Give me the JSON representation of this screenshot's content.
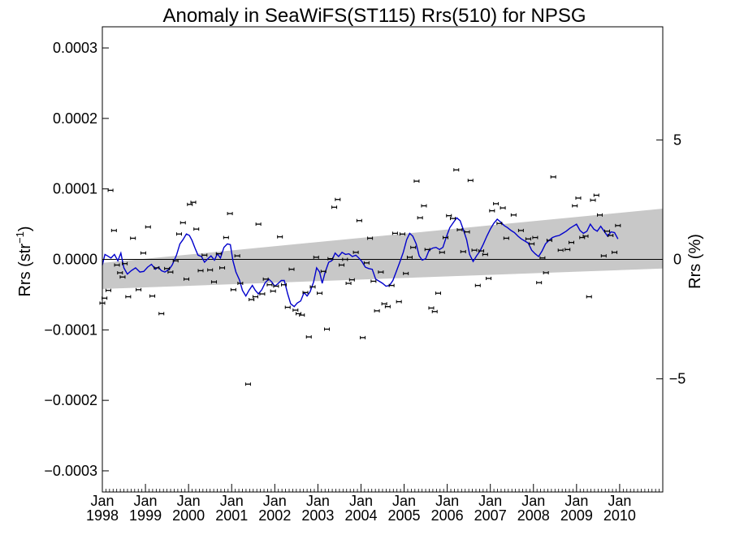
{
  "chart_data": {
    "type": "scatter",
    "title": "Anomaly in SeaWiFS(ST115) Rrs(510) for NPSG",
    "ylabel": "Rrs (str",
    "ylabel_superscript": "−1",
    "ylabel_close": ")",
    "y2label": "Rrs (%)",
    "ylim": [
      -0.00033,
      0.00033
    ],
    "xlim": [
      1998.0,
      2011.0
    ],
    "y_ticks": [
      {
        "value": 0.0003,
        "label": "0.0003"
      },
      {
        "value": 0.0002,
        "label": "0.0002"
      },
      {
        "value": 0.0001,
        "label": "0.0001"
      },
      {
        "value": 0.0,
        "label": "0.0000"
      },
      {
        "value": -0.0001,
        "label": "−0.0001"
      },
      {
        "value": -0.0002,
        "label": "−0.0002"
      },
      {
        "value": -0.0003,
        "label": "−0.0003"
      }
    ],
    "y2_ticks": [
      {
        "value": 5,
        "label": "5"
      },
      {
        "value": 0,
        "label": "0"
      },
      {
        "value": -5,
        "label": "−5"
      }
    ],
    "y2_per_percent": 3.39e-05,
    "x_ticks": [
      {
        "year": 1998,
        "month": "Jan",
        "label": "1998"
      },
      {
        "year": 1999,
        "month": "Jan",
        "label": "1999"
      },
      {
        "year": 2000,
        "month": "Jan",
        "label": "2000"
      },
      {
        "year": 2001,
        "month": "Jan",
        "label": "2001"
      },
      {
        "year": 2002,
        "month": "Jan",
        "label": "2002"
      },
      {
        "year": 2003,
        "month": "Jan",
        "label": "2003"
      },
      {
        "year": 2004,
        "month": "Jan",
        "label": "2004"
      },
      {
        "year": 2005,
        "month": "Jan",
        "label": "2005"
      },
      {
        "year": 2006,
        "month": "Jan",
        "label": "2006"
      },
      {
        "year": 2007,
        "month": "Jan",
        "label": "2007"
      },
      {
        "year": 2008,
        "month": "Jan",
        "label": "2008"
      },
      {
        "year": 2009,
        "month": "Jan",
        "label": "2009"
      },
      {
        "year": 2010,
        "month": "Jan",
        "label": "2010"
      }
    ],
    "trend_band": {
      "upper": [
        [
          1998.0,
          -5e-06
        ],
        [
          2011.0,
          7.2e-05
        ]
      ],
      "lower": [
        [
          1998.0,
          -4.2e-05
        ],
        [
          2011.0,
          -1.3e-05
        ]
      ]
    },
    "zero_line": 0.0,
    "points": [
      [
        1998.0,
        -6.2e-05
      ],
      [
        1998.05,
        -5.5e-05
      ],
      [
        1998.14,
        -4.4e-05
      ],
      [
        1998.19,
        9.8e-05
      ],
      [
        1998.27,
        4.1e-05
      ],
      [
        1998.34,
        -8e-06
      ],
      [
        1998.41,
        -1.9e-05
      ],
      [
        1998.47,
        -2.5e-05
      ],
      [
        1998.52,
        -6e-06
      ],
      [
        1998.6,
        -5.3e-05
      ],
      [
        1998.71,
        3e-05
      ],
      [
        1998.84,
        -4.3e-05
      ],
      [
        1998.95,
        9e-06
      ],
      [
        1999.06,
        4.6e-05
      ],
      [
        1999.16,
        -5.2e-05
      ],
      [
        1999.26,
        -1.2e-05
      ],
      [
        1999.37,
        -7.7e-05
      ],
      [
        1999.5,
        -1.3e-05
      ],
      [
        1999.58,
        -1.8e-05
      ],
      [
        1999.7,
        -2e-06
      ],
      [
        1999.78,
        3.6e-05
      ],
      [
        1999.87,
        5.2e-05
      ],
      [
        1999.95,
        -2.8e-05
      ],
      [
        2000.03,
        7.8e-05
      ],
      [
        2000.11,
        8.1e-05
      ],
      [
        2000.18,
        4.3e-05
      ],
      [
        2000.28,
        -1.6e-05
      ],
      [
        2000.37,
        6e-06
      ],
      [
        2000.5,
        -1.5e-05
      ],
      [
        2000.59,
        -3.2e-05
      ],
      [
        2000.7,
        8e-06
      ],
      [
        2000.78,
        -1.2e-05
      ],
      [
        2000.87,
        3.1e-05
      ],
      [
        2000.96,
        6.5e-05
      ],
      [
        2001.04,
        -4.3e-05
      ],
      [
        2001.13,
        5e-06
      ],
      [
        2001.2,
        -3.4e-05
      ],
      [
        2001.38,
        -0.000177
      ],
      [
        2001.46,
        -5.7e-05
      ],
      [
        2001.55,
        -5.3e-05
      ],
      [
        2001.62,
        5e-05
      ],
      [
        2001.71,
        -4.9e-05
      ],
      [
        2001.79,
        -2.8e-05
      ],
      [
        2001.88,
        -3.6e-05
      ],
      [
        2001.96,
        -4.5e-05
      ],
      [
        2002.03,
        -3.8e-05
      ],
      [
        2002.12,
        3.2e-05
      ],
      [
        2002.21,
        -3.6e-05
      ],
      [
        2002.3,
        -6.8e-05
      ],
      [
        2002.39,
        -1.4e-05
      ],
      [
        2002.48,
        -7.2e-05
      ],
      [
        2002.55,
        -7.7e-05
      ],
      [
        2002.63,
        -7.9e-05
      ],
      [
        2002.71,
        -4.7e-05
      ],
      [
        2002.79,
        -0.00011
      ],
      [
        2002.88,
        -3.9e-05
      ],
      [
        2002.96,
        3e-06
      ],
      [
        2003.04,
        -4.8e-05
      ],
      [
        2003.13,
        -1.7e-05
      ],
      [
        2003.21,
        -9.9e-05
      ],
      [
        2003.29,
        1e-06
      ],
      [
        2003.38,
        7.4e-05
      ],
      [
        2003.46,
        8.5e-05
      ],
      [
        2003.55,
        -8e-06
      ],
      [
        2003.63,
        0.0
      ],
      [
        2003.71,
        -3.4e-05
      ],
      [
        2003.79,
        -2.9e-05
      ],
      [
        2003.88,
        1e-05
      ],
      [
        2003.96,
        5.5e-05
      ],
      [
        2004.04,
        -0.000111
      ],
      [
        2004.13,
        -5e-06
      ],
      [
        2004.21,
        3e-05
      ],
      [
        2004.29,
        -3.1e-05
      ],
      [
        2004.37,
        -7.3e-05
      ],
      [
        2004.46,
        -1.8e-05
      ],
      [
        2004.54,
        -6.3e-05
      ],
      [
        2004.62,
        -6.7e-05
      ],
      [
        2004.71,
        -3.7e-05
      ],
      [
        2004.79,
        3.7e-05
      ],
      [
        2004.88,
        -6e-05
      ],
      [
        2004.96,
        3.6e-05
      ],
      [
        2005.04,
        -2e-05
      ],
      [
        2005.13,
        3e-06
      ],
      [
        2005.21,
        1.7e-05
      ],
      [
        2005.29,
        0.000111
      ],
      [
        2005.37,
        5.9e-05
      ],
      [
        2005.46,
        7.6e-05
      ],
      [
        2005.54,
        1.4e-05
      ],
      [
        2005.63,
        -6.9e-05
      ],
      [
        2005.71,
        -7.4e-05
      ],
      [
        2005.79,
        -4.8e-05
      ],
      [
        2005.88,
        1e-05
      ],
      [
        2005.96,
        3.1e-05
      ],
      [
        2006.04,
        6.2e-05
      ],
      [
        2006.13,
        5.8e-05
      ],
      [
        2006.21,
        0.000127
      ],
      [
        2006.29,
        4.2e-05
      ],
      [
        2006.37,
        1.1e-05
      ],
      [
        2006.46,
        3.9e-05
      ],
      [
        2006.54,
        0.000112
      ],
      [
        2006.63,
        1.3e-05
      ],
      [
        2006.71,
        -3.7e-05
      ],
      [
        2006.79,
        1.2e-05
      ],
      [
        2006.88,
        7e-06
      ],
      [
        2006.96,
        -2.7e-05
      ],
      [
        2007.04,
        6.9e-05
      ],
      [
        2007.13,
        7.9e-05
      ],
      [
        2007.21,
        5.1e-05
      ],
      [
        2007.29,
        7.3e-05
      ],
      [
        2007.37,
        3e-05
      ],
      [
        2007.54,
        6.3e-05
      ],
      [
        2007.71,
        4.1e-05
      ],
      [
        2007.88,
        2.9e-05
      ],
      [
        2007.96,
        2.2e-05
      ],
      [
        2008.04,
        3.1e-05
      ],
      [
        2008.13,
        -3.3e-05
      ],
      [
        2008.21,
        2e-06
      ],
      [
        2008.29,
        -1.9e-05
      ],
      [
        2008.37,
        2.7e-05
      ],
      [
        2008.46,
        0.000117
      ],
      [
        2008.63,
        1.3e-05
      ],
      [
        2008.79,
        1.4e-05
      ],
      [
        2008.88,
        2.4e-05
      ],
      [
        2008.96,
        7.6e-05
      ],
      [
        2009.04,
        8.7e-05
      ],
      [
        2009.13,
        3.1e-05
      ],
      [
        2009.21,
        3.3e-05
      ],
      [
        2009.29,
        -5.3e-05
      ],
      [
        2009.38,
        8.4e-05
      ],
      [
        2009.46,
        9.1e-05
      ],
      [
        2009.54,
        6.3e-05
      ],
      [
        2009.63,
        5e-06
      ],
      [
        2009.71,
        4e-05
      ],
      [
        2009.79,
        3.4e-05
      ],
      [
        2009.88,
        1e-05
      ],
      [
        2009.96,
        4.8e-05
      ]
    ],
    "running_mean": [
      [
        1998.0,
        -8e-06
      ],
      [
        1998.06,
        7e-06
      ],
      [
        1998.12,
        5e-06
      ],
      [
        1998.2,
        2e-06
      ],
      [
        1998.28,
        7e-06
      ],
      [
        1998.36,
        -2e-06
      ],
      [
        1998.43,
        9e-06
      ],
      [
        1998.5,
        -1.2e-05
      ],
      [
        1998.58,
        -2.1e-05
      ],
      [
        1998.67,
        -1.6e-05
      ],
      [
        1998.77,
        -1.2e-05
      ],
      [
        1998.87,
        -1.8e-05
      ],
      [
        1998.96,
        -1.7e-05
      ],
      [
        1999.05,
        -1.1e-05
      ],
      [
        1999.14,
        -7e-06
      ],
      [
        1999.23,
        -1.4e-05
      ],
      [
        1999.3,
        -1.1e-05
      ],
      [
        1999.37,
        -1.6e-05
      ],
      [
        1999.45,
        -1.8e-05
      ],
      [
        1999.55,
        -1.4e-05
      ],
      [
        1999.62,
        -8e-06
      ],
      [
        1999.72,
        6e-06
      ],
      [
        1999.8,
        2.2e-05
      ],
      [
        1999.87,
        2.8e-05
      ],
      [
        1999.95,
        3.6e-05
      ],
      [
        2000.02,
        3.4e-05
      ],
      [
        2000.08,
        2.7e-05
      ],
      [
        2000.15,
        1.6e-05
      ],
      [
        2000.22,
        6e-06
      ],
      [
        2000.3,
        4e-06
      ],
      [
        2000.37,
        -4e-06
      ],
      [
        2000.45,
        1e-06
      ],
      [
        2000.52,
        5e-06
      ],
      [
        2000.6,
        -1e-06
      ],
      [
        2000.67,
        8e-06
      ],
      [
        2000.74,
        2e-06
      ],
      [
        2000.82,
        1.7e-05
      ],
      [
        2000.9,
        2.2e-05
      ],
      [
        2000.97,
        2.1e-05
      ],
      [
        2001.03,
        -2e-06
      ],
      [
        2001.1,
        -1.8e-05
      ],
      [
        2001.18,
        -2.9e-05
      ],
      [
        2001.25,
        -4.4e-05
      ],
      [
        2001.33,
        -5.2e-05
      ],
      [
        2001.4,
        -4.4e-05
      ],
      [
        2001.48,
        -3.7e-05
      ],
      [
        2001.55,
        -4.4e-05
      ],
      [
        2001.62,
        -4.9e-05
      ],
      [
        2001.7,
        -4.3e-05
      ],
      [
        2001.78,
        -3.3e-05
      ],
      [
        2001.86,
        -2.8e-05
      ],
      [
        2001.93,
        -3.2e-05
      ],
      [
        2002.0,
        -3.8e-05
      ],
      [
        2002.08,
        -3.4e-05
      ],
      [
        2002.15,
        -3e-05
      ],
      [
        2002.22,
        -3e-05
      ],
      [
        2002.3,
        -4.9e-05
      ],
      [
        2002.37,
        -6.3e-05
      ],
      [
        2002.45,
        -6.7e-05
      ],
      [
        2002.52,
        -6.2e-05
      ],
      [
        2002.6,
        -5.9e-05
      ],
      [
        2002.68,
        -4.7e-05
      ],
      [
        2002.75,
        -5.2e-05
      ],
      [
        2002.82,
        -4.6e-05
      ],
      [
        2002.9,
        -3.2e-05
      ],
      [
        2002.97,
        -1.2e-05
      ],
      [
        2003.04,
        -1.8e-05
      ],
      [
        2003.1,
        -3.4e-05
      ],
      [
        2003.17,
        -1.8e-05
      ],
      [
        2003.25,
        -4e-06
      ],
      [
        2003.32,
        -2e-06
      ],
      [
        2003.4,
        9e-06
      ],
      [
        2003.48,
        4e-06
      ],
      [
        2003.56,
        1e-05
      ],
      [
        2003.64,
        7e-06
      ],
      [
        2003.72,
        8e-06
      ],
      [
        2003.8,
        4e-06
      ],
      [
        2003.88,
        6e-06
      ],
      [
        2003.95,
        2e-06
      ],
      [
        2004.02,
        -3e-06
      ],
      [
        2004.1,
        -1.1e-05
      ],
      [
        2004.18,
        -1.3e-05
      ],
      [
        2004.26,
        -1.4e-05
      ],
      [
        2004.34,
        -2.8e-05
      ],
      [
        2004.42,
        -3.1e-05
      ],
      [
        2004.5,
        -3.4e-05
      ],
      [
        2004.58,
        -3.8e-05
      ],
      [
        2004.66,
        -3.7e-05
      ],
      [
        2004.74,
        -3e-05
      ],
      [
        2004.82,
        -1.7e-05
      ],
      [
        2004.9,
        -4e-06
      ],
      [
        2004.98,
        1e-05
      ],
      [
        2005.06,
        2.8e-05
      ],
      [
        2005.13,
        3.7e-05
      ],
      [
        2005.2,
        3.3e-05
      ],
      [
        2005.28,
        2.2e-05
      ],
      [
        2005.35,
        5e-06
      ],
      [
        2005.42,
        -1e-06
      ],
      [
        2005.5,
        1e-06
      ],
      [
        2005.58,
        1.3e-05
      ],
      [
        2005.66,
        1.6e-05
      ],
      [
        2005.74,
        1.7e-05
      ],
      [
        2005.82,
        1.4e-05
      ],
      [
        2005.9,
        1.7e-05
      ],
      [
        2005.98,
        3.2e-05
      ],
      [
        2006.06,
        4.5e-05
      ],
      [
        2006.14,
        5.2e-05
      ],
      [
        2006.22,
        5.9e-05
      ],
      [
        2006.3,
        5.5e-05
      ],
      [
        2006.38,
        4.1e-05
      ],
      [
        2006.45,
        2.8e-05
      ],
      [
        2006.52,
        7e-06
      ],
      [
        2006.6,
        -3e-06
      ],
      [
        2006.68,
        5e-06
      ],
      [
        2006.76,
        1.2e-05
      ],
      [
        2006.84,
        2.2e-05
      ],
      [
        2006.92,
        3.3e-05
      ],
      [
        2007.0,
        4.3e-05
      ],
      [
        2007.08,
        5.1e-05
      ],
      [
        2007.16,
        5.7e-05
      ],
      [
        2007.24,
        5.3e-05
      ],
      [
        2007.32,
        4.8e-05
      ],
      [
        2007.4,
        4.5e-05
      ],
      [
        2007.48,
        4.1e-05
      ],
      [
        2007.56,
        3.8e-05
      ],
      [
        2007.64,
        3.3e-05
      ],
      [
        2007.72,
        2.9e-05
      ],
      [
        2007.8,
        2.6e-05
      ],
      [
        2007.88,
        2.3e-05
      ],
      [
        2007.96,
        1.3e-05
      ],
      [
        2008.04,
        8e-06
      ],
      [
        2008.12,
        4e-06
      ],
      [
        2008.2,
        1.2e-05
      ],
      [
        2008.28,
        2.2e-05
      ],
      [
        2008.36,
        2.7e-05
      ],
      [
        2008.44,
        3.1e-05
      ],
      [
        2008.52,
        3.3e-05
      ],
      [
        2008.6,
        3.4e-05
      ],
      [
        2008.68,
        3.7e-05
      ],
      [
        2008.76,
        4e-05
      ],
      [
        2008.84,
        4.4e-05
      ],
      [
        2008.92,
        4.7e-05
      ],
      [
        2009.0,
        5e-05
      ],
      [
        2009.08,
        4.1e-05
      ],
      [
        2009.16,
        3.7e-05
      ],
      [
        2009.24,
        4e-05
      ],
      [
        2009.32,
        5e-05
      ],
      [
        2009.4,
        4.3e-05
      ],
      [
        2009.48,
        4e-05
      ],
      [
        2009.56,
        4.7e-05
      ],
      [
        2009.64,
        4e-05
      ],
      [
        2009.72,
        3.3e-05
      ],
      [
        2009.8,
        3.9e-05
      ],
      [
        2009.88,
        3.8e-05
      ],
      [
        2009.96,
        2.9e-05
      ]
    ],
    "colors": {
      "band": "#c8c8c8",
      "running_mean": "#0000cc",
      "points": "#000000",
      "axes": "#000000"
    },
    "grid": false
  }
}
